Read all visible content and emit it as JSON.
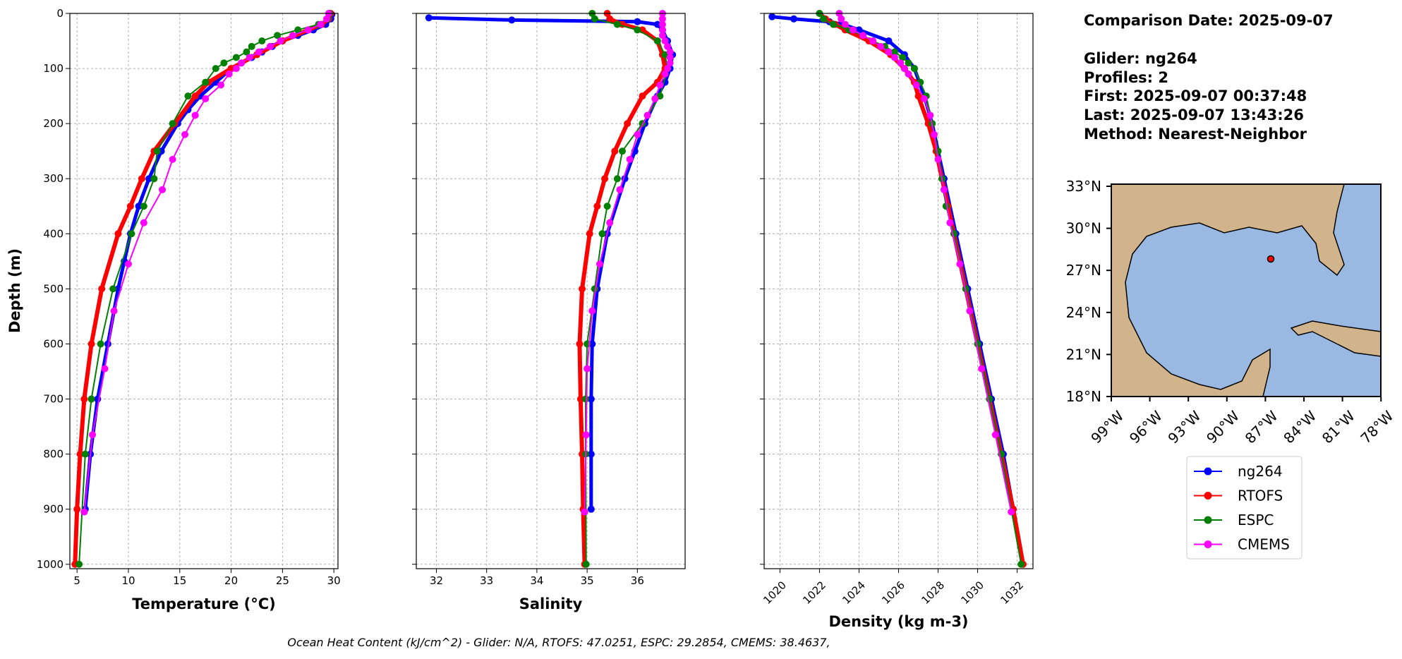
{
  "chart_data": [
    {
      "type": "line",
      "xlabel": "Temperature (°C)",
      "ylabel": "Depth (m)",
      "xlim": [
        4.3,
        30.4
      ],
      "ylim": [
        0,
        1008
      ],
      "y_inverted": true,
      "grid": true,
      "xticks": [
        5,
        10,
        15,
        20,
        25,
        30
      ],
      "yticks": [
        0,
        100,
        200,
        300,
        400,
        500,
        600,
        700,
        800,
        900,
        1000
      ],
      "series": [
        {
          "name": "ng264",
          "color": "#0000ff",
          "y": [
            2,
            10,
            20,
            30,
            40,
            50,
            60,
            70,
            80,
            90,
            100,
            125,
            150,
            175,
            200,
            250,
            300,
            350,
            400,
            450,
            500,
            600,
            700,
            800,
            900
          ],
          "x": [
            29.8,
            29.7,
            29.2,
            28,
            26.5,
            25,
            24,
            23,
            22,
            21,
            20,
            18.5,
            17,
            15.8,
            14.8,
            13.2,
            12,
            11,
            10.2,
            9.6,
            9,
            8,
            7,
            6.3,
            5.8
          ]
        },
        {
          "name": "RTOFS",
          "color": "#ff0000",
          "y": [
            0,
            10,
            20,
            30,
            50,
            75,
            100,
            125,
            150,
            200,
            250,
            300,
            350,
            400,
            500,
            600,
            700,
            800,
            900,
            1000
          ],
          "x": [
            29.7,
            29.5,
            28.8,
            27.5,
            25,
            22.5,
            20,
            17.8,
            16.5,
            14.5,
            12.5,
            11.3,
            10.2,
            9,
            7.4,
            6.4,
            5.7,
            5.3,
            5.0,
            4.8
          ]
        },
        {
          "name": "ESPC",
          "color": "#008000",
          "y": [
            0,
            10,
            20,
            30,
            40,
            50,
            60,
            70,
            80,
            90,
            100,
            125,
            150,
            200,
            250,
            300,
            350,
            400,
            500,
            600,
            700,
            800,
            1000
          ],
          "x": [
            29.6,
            29.4,
            28.5,
            26.5,
            24.5,
            23,
            22,
            21.5,
            20.5,
            19.3,
            18.5,
            17.5,
            15.8,
            14.3,
            12.8,
            12.5,
            11.5,
            10.3,
            8.5,
            7.3,
            6.4,
            5.8,
            5.2
          ]
        },
        {
          "name": "CMEMS",
          "color": "#ff00ff",
          "y": [
            0,
            10,
            20,
            30,
            40,
            50,
            60,
            70,
            80,
            90,
            100,
            110,
            130,
            155,
            185,
            220,
            265,
            320,
            380,
            455,
            540,
            645,
            765,
            905
          ],
          "x": [
            29.5,
            29.3,
            28.7,
            27.5,
            26,
            24.8,
            23.8,
            22.7,
            21.8,
            21,
            20.5,
            19.8,
            19,
            17.5,
            16.5,
            15.5,
            14.3,
            13.3,
            11.5,
            10,
            8.6,
            7.7,
            6.5,
            5.7
          ]
        }
      ]
    },
    {
      "type": "line",
      "xlabel": "Salinity",
      "xlim": [
        31.6,
        36.95
      ],
      "ylim": [
        0,
        1008
      ],
      "y_inverted": true,
      "grid": true,
      "xticks": [
        32,
        33,
        34,
        35,
        36
      ],
      "yticks": [
        0,
        100,
        200,
        300,
        400,
        500,
        600,
        700,
        800,
        900,
        1000
      ],
      "series": [
        {
          "name": "ng264",
          "color": "#0000ff",
          "y": [
            8,
            12,
            15,
            20,
            30,
            50,
            75,
            100,
            125,
            150,
            200,
            250,
            300,
            400,
            500,
            600,
            700,
            800,
            900
          ],
          "x": [
            31.85,
            33.5,
            36.0,
            36.4,
            36.5,
            36.6,
            36.7,
            36.65,
            36.55,
            36.4,
            36.15,
            35.95,
            35.75,
            35.4,
            35.2,
            35.1,
            35.08,
            35.08,
            35.08
          ]
        },
        {
          "name": "RTOFS",
          "color": "#ff0000",
          "y": [
            0,
            10,
            20,
            30,
            50,
            75,
            100,
            125,
            150,
            200,
            250,
            300,
            350,
            400,
            500,
            600,
            700,
            800,
            900,
            1000
          ],
          "x": [
            35.4,
            35.45,
            35.7,
            36.1,
            36.4,
            36.5,
            36.55,
            36.4,
            36.1,
            35.8,
            35.55,
            35.35,
            35.2,
            35.05,
            34.9,
            34.85,
            34.87,
            34.9,
            34.92,
            34.95
          ]
        },
        {
          "name": "ESPC",
          "color": "#008000",
          "y": [
            0,
            10,
            20,
            30,
            50,
            75,
            100,
            150,
            200,
            250,
            300,
            350,
            400,
            500,
            600,
            700,
            800,
            1000
          ],
          "x": [
            35.1,
            35.15,
            35.6,
            36.0,
            36.4,
            36.55,
            36.6,
            36.45,
            36.1,
            35.7,
            35.6,
            35.4,
            35.3,
            35.15,
            35.0,
            34.97,
            34.97,
            34.98
          ]
        },
        {
          "name": "CMEMS",
          "color": "#ff00ff",
          "y": [
            0,
            10,
            20,
            30,
            40,
            50,
            60,
            70,
            80,
            90,
            100,
            110,
            130,
            155,
            185,
            220,
            265,
            320,
            380,
            455,
            540,
            645,
            765,
            905
          ],
          "x": [
            36.5,
            36.5,
            36.5,
            36.5,
            36.5,
            36.55,
            36.6,
            36.65,
            36.65,
            36.65,
            36.6,
            36.55,
            36.45,
            36.35,
            36.2,
            36.0,
            35.85,
            35.65,
            35.45,
            35.25,
            35.1,
            35.0,
            34.98,
            34.95
          ]
        }
      ]
    },
    {
      "type": "line",
      "xlabel": "Density (kg m-3)",
      "xlim": [
        1019.2,
        1032.8
      ],
      "ylim": [
        0,
        1008
      ],
      "y_inverted": true,
      "grid": true,
      "xticks": [
        1020,
        1022,
        1024,
        1026,
        1028,
        1030,
        1032
      ],
      "yticks": [
        0,
        100,
        200,
        300,
        400,
        500,
        600,
        700,
        800,
        900,
        1000
      ],
      "series": [
        {
          "name": "ng264",
          "color": "#0000ff",
          "y": [
            6,
            10,
            15,
            20,
            30,
            50,
            75,
            100,
            150,
            200,
            300,
            400,
            500,
            600,
            700,
            800,
            900
          ],
          "x": [
            1019.6,
            1020.7,
            1022.5,
            1023.2,
            1024,
            1025.5,
            1026.3,
            1026.8,
            1027.3,
            1027.7,
            1028.3,
            1028.9,
            1029.5,
            1030.1,
            1030.7,
            1031.3,
            1031.8
          ]
        },
        {
          "name": "RTOFS",
          "color": "#ff0000",
          "y": [
            0,
            10,
            20,
            30,
            50,
            75,
            100,
            125,
            150,
            200,
            250,
            300,
            350,
            400,
            500,
            600,
            700,
            800,
            900,
            1000
          ],
          "x": [
            1022.0,
            1022.3,
            1022.8,
            1023.3,
            1024.5,
            1025.6,
            1026.3,
            1026.8,
            1027.0,
            1027.5,
            1027.9,
            1028.2,
            1028.5,
            1028.8,
            1029.4,
            1030.0,
            1030.6,
            1031.2,
            1031.8,
            1032.3
          ]
        },
        {
          "name": "ESPC",
          "color": "#008000",
          "y": [
            0,
            10,
            20,
            30,
            40,
            50,
            60,
            70,
            80,
            90,
            100,
            125,
            150,
            200,
            250,
            300,
            350,
            400,
            500,
            600,
            700,
            800,
            1000
          ],
          "x": [
            1022,
            1022.2,
            1022.7,
            1023.5,
            1024.2,
            1024.7,
            1025.3,
            1025.8,
            1026.2,
            1026.5,
            1026.8,
            1027.1,
            1027.4,
            1027.7,
            1028.0,
            1028.2,
            1028.4,
            1028.8,
            1029.4,
            1030.0,
            1030.6,
            1031.2,
            1032.2
          ]
        },
        {
          "name": "CMEMS",
          "color": "#ff00ff",
          "y": [
            0,
            10,
            20,
            30,
            40,
            50,
            60,
            70,
            80,
            90,
            100,
            110,
            130,
            155,
            185,
            220,
            265,
            320,
            380,
            455,
            540,
            645,
            765,
            905
          ],
          "x": [
            1023,
            1023.1,
            1023.3,
            1023.7,
            1024.2,
            1024.7,
            1025.1,
            1025.5,
            1025.8,
            1026.1,
            1026.3,
            1026.5,
            1026.9,
            1027.3,
            1027.6,
            1027.8,
            1028.0,
            1028.3,
            1028.6,
            1029.1,
            1029.6,
            1030.2,
            1030.9,
            1031.7
          ]
        }
      ]
    }
  ],
  "info": [
    "Comparison Date: 2025-09-07",
    "Glider: ng264",
    "Profiles: 2",
    "First: 2025-09-07 00:37:48",
    "Last: 2025-09-07 13:43:26",
    "Method: Nearest-Neighbor"
  ],
  "map": {
    "lat_labels": [
      "33°N",
      "30°N",
      "27°N",
      "24°N",
      "21°N",
      "18°N"
    ],
    "lon_labels": [
      "99°W",
      "96°W",
      "93°W",
      "90°W",
      "87°W",
      "84°W",
      "81°W",
      "78°W"
    ]
  },
  "footer": "Ocean Heat Content (kJ/cm^2) - Glider: N/A,  RTOFS: 47.0251,  ESPC: 29.2854,  CMEMS: 38.4637,"
}
